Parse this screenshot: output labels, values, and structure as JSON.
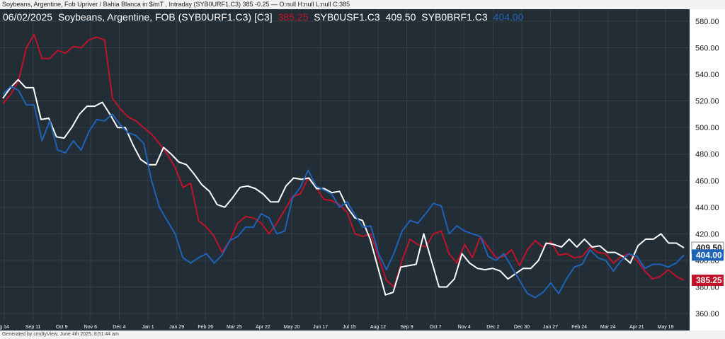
{
  "header": {
    "top_title": "Soybeans, Argentine, Fob Upriver / Bahia Blanca in $/mT , Intraday (SYB0URF1.C3) 385 -0.25 — O:null H:null L:null C:385"
  },
  "legend": {
    "date": "06/02/2025",
    "name": "Soybeans, Argentine, FOB (SYB0URF1.C3) [C3]",
    "series": [
      {
        "code": "",
        "value": "385.25",
        "color": "#c0132a"
      },
      {
        "code": "SYB0USF1.C3",
        "value": "409.50",
        "color": "#ffffff"
      },
      {
        "code": "SYB0BRF1.C3",
        "value": "404.00",
        "color": "#1e63b8"
      }
    ]
  },
  "footer": {
    "generated": "Generated by cmdtyView, June 4th 2025, 8:51:44 am"
  },
  "colors": {
    "background": "#232d35",
    "grid": "#333f48",
    "axis_text": "#ffffff",
    "red": "#c0132a",
    "white": "#ffffff",
    "blue": "#1e63b8"
  },
  "chart_data": {
    "type": "line",
    "ylim": [
      350,
      590
    ],
    "y_ticks": [
      "360.00",
      "380.00",
      "400.00",
      "420.00",
      "440.00",
      "460.00",
      "480.00",
      "500.00",
      "520.00",
      "540.00",
      "560.00",
      "580.00"
    ],
    "x_tick_labels": [
      "g 14",
      "Sep 11",
      "Oct 9",
      "Nov 6",
      "Dec 4",
      "Jan 1",
      "Jan 29",
      "Feb 26",
      "Mar 25",
      "Apr 22",
      "May 20",
      "Jun 17",
      "Jul 15",
      "Aug 12",
      "Sep 9",
      "Oct 7",
      "Nov 4",
      "Dec 2",
      "Dec 30",
      "Jan 27",
      "Feb 24",
      "Mar 24",
      "Apr 21",
      "May 19"
    ],
    "grid": true,
    "series": [
      {
        "name": "SYB0URF1.C3",
        "color": "#c0132a",
        "last_label": "385.25",
        "values": [
          518,
          525,
          535,
          560,
          570,
          552,
          552,
          558,
          556,
          561,
          560,
          566,
          568,
          566,
          522,
          514,
          508,
          505,
          500,
          495,
          488,
          480,
          470,
          455,
          458,
          430,
          425,
          418,
          406,
          415,
          428,
          433,
          432,
          428,
          420,
          428,
          438,
          448,
          450,
          462,
          455,
          446,
          445,
          442,
          436,
          420,
          418,
          420,
          402,
          385,
          380,
          400,
          416,
          412,
          410,
          420,
          422,
          405,
          398,
          412,
          402,
          418,
          410,
          402,
          403,
          408,
          396,
          408,
          415,
          410,
          414,
          404,
          405,
          402,
          403,
          410,
          406,
          405,
          398,
          403,
          405,
          400,
          392,
          386,
          388,
          393,
          388,
          385
        ]
      },
      {
        "name": "SYB0USF1.C3",
        "color": "#ffffff",
        "last_label": "409.50",
        "values": [
          522,
          530,
          536,
          530,
          530,
          506,
          507,
          493,
          492,
          500,
          510,
          516,
          516,
          519,
          510,
          500,
          500,
          487,
          476,
          472,
          472,
          485,
          480,
          474,
          472,
          465,
          457,
          452,
          442,
          440,
          447,
          455,
          456,
          454,
          450,
          444,
          444,
          456,
          462,
          461,
          462,
          454,
          454,
          451,
          452,
          440,
          432,
          430,
          416,
          395,
          374,
          376,
          395,
          396,
          397,
          420,
          400,
          380,
          380,
          386,
          405,
          398,
          394,
          393,
          394,
          392,
          386,
          390,
          394,
          394,
          400,
          413,
          412,
          410,
          416,
          410,
          416,
          410,
          411,
          406,
          406,
          403,
          398,
          411,
          416,
          416,
          420,
          413,
          413,
          409.5
        ]
      },
      {
        "name": "SYB0BRF1.C3",
        "color": "#1e63b8",
        "last_label": "404.00",
        "values": [
          525,
          531,
          528,
          517,
          517,
          490,
          505,
          483,
          481,
          490,
          483,
          497,
          506,
          505,
          510,
          502,
          496,
          494,
          488,
          460,
          440,
          430,
          420,
          402,
          398,
          402,
          405,
          398,
          404,
          415,
          418,
          425,
          425,
          435,
          432,
          420,
          422,
          447,
          455,
          468,
          456,
          453,
          450,
          440,
          444,
          434,
          425,
          426,
          405,
          393,
          406,
          422,
          430,
          428,
          435,
          443,
          441,
          420,
          426,
          422,
          420,
          418,
          403,
          400,
          405,
          395,
          385,
          375,
          372,
          376,
          383,
          375,
          386,
          395,
          397,
          408,
          402,
          400,
          392,
          400,
          405,
          403,
          394,
          397,
          397,
          395,
          398,
          404
        ]
      }
    ]
  }
}
